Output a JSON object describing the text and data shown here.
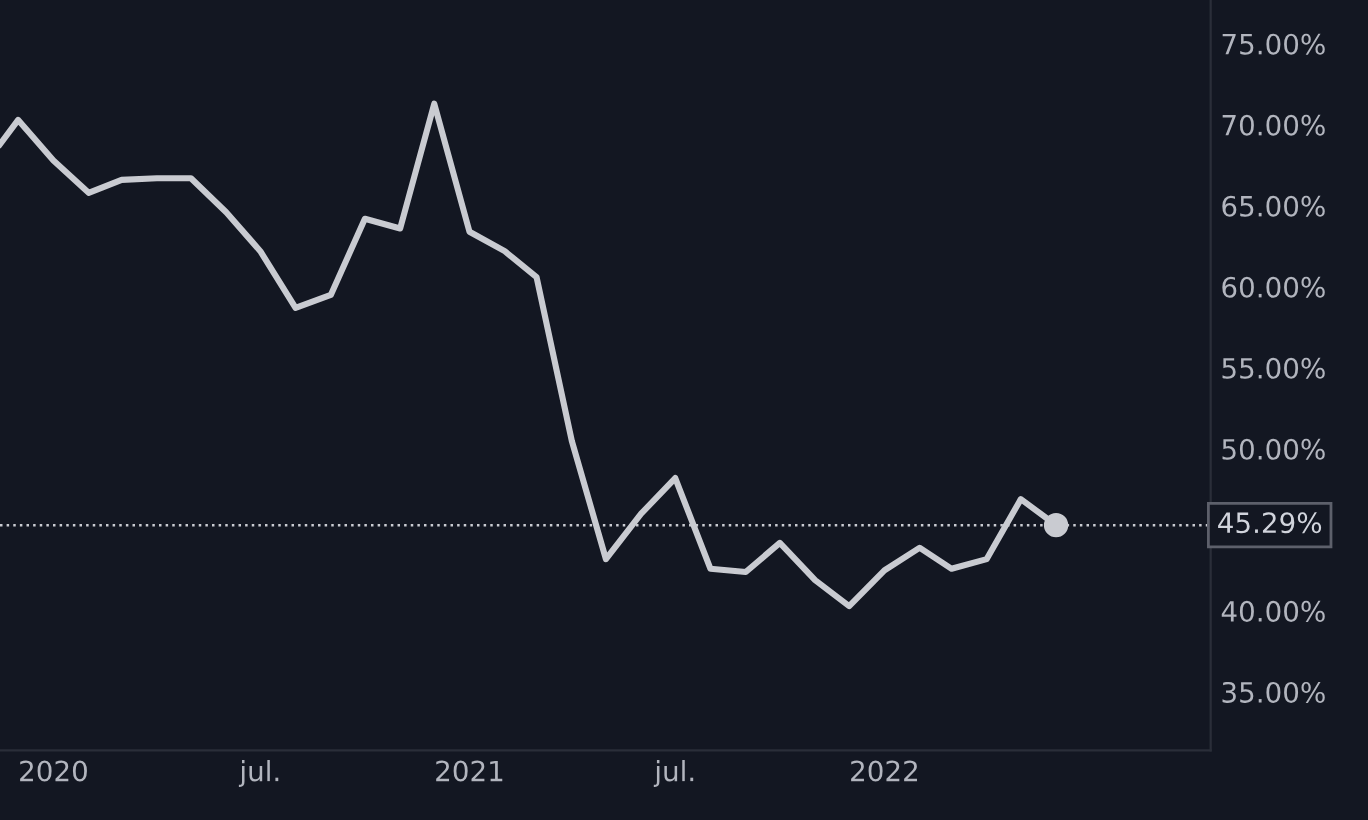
{
  "chart_data": {
    "type": "line",
    "x": [
      "2019-11-15",
      "2019-12-01",
      "2020-01-01",
      "2020-02-01",
      "2020-03-01",
      "2020-04-01",
      "2020-05-01",
      "2020-06-01",
      "2020-07-01",
      "2020-08-01",
      "2020-09-01",
      "2020-10-01",
      "2020-11-01",
      "2020-12-01",
      "2021-01-01",
      "2021-02-01",
      "2021-03-01",
      "2021-04-01",
      "2021-05-01",
      "2021-06-01",
      "2021-07-01",
      "2021-08-01",
      "2021-09-01",
      "2021-10-01",
      "2021-11-01",
      "2021-12-01",
      "2022-01-01",
      "2022-02-01",
      "2022-03-01",
      "2022-04-01",
      "2022-05-01",
      "2022-06-01"
    ],
    "series": [
      {
        "color": "#c9cbd1",
        "values": [
          68.8,
          70.3,
          67.8,
          65.8,
          66.6,
          66.7,
          66.7,
          64.6,
          62.2,
          58.7,
          59.5,
          64.2,
          63.6,
          71.3,
          63.4,
          62.2,
          60.6,
          50.5,
          43.2,
          46.0,
          48.2,
          42.6,
          42.4,
          44.2,
          41.9,
          40.3,
          42.5,
          43.9,
          42.6,
          43.2,
          46.9,
          45.29
        ]
      },
      {
        "type": "scatter",
        "color": "#c9cbd1",
        "marker": "circle",
        "x": [
          "2022-06-01"
        ],
        "values": [
          45.29
        ]
      }
    ],
    "xlim": [
      "2019-11-15",
      "2022-10-15"
    ],
    "xticks": [
      {
        "value": "2020-01-01",
        "label": "2020"
      },
      {
        "value": "2020-07-01",
        "label": "jul."
      },
      {
        "value": "2021-01-01",
        "label": "2021"
      },
      {
        "value": "2021-07-01",
        "label": "jul."
      },
      {
        "value": "2022-01-01",
        "label": "2022"
      }
    ],
    "ylim": [
      31.4,
      77.7
    ],
    "yticks": [
      {
        "value": 35,
        "label": "35.00%"
      },
      {
        "value": 40,
        "label": "40.00%"
      },
      {
        "value": 50,
        "label": "50.00%"
      },
      {
        "value": 55,
        "label": "55.00%"
      },
      {
        "value": 60,
        "label": "60.00%"
      },
      {
        "value": 65,
        "label": "65.00%"
      },
      {
        "value": 70,
        "label": "70.00%"
      },
      {
        "value": 75,
        "label": "75.00%"
      }
    ],
    "ref_lines": [
      {
        "axis": "y",
        "value": 45.29,
        "label": "45.29%",
        "color": "#c9cbd1",
        "line_style": "dotted"
      }
    ],
    "grid": false,
    "marker": "none",
    "line_style": "solid"
  }
}
